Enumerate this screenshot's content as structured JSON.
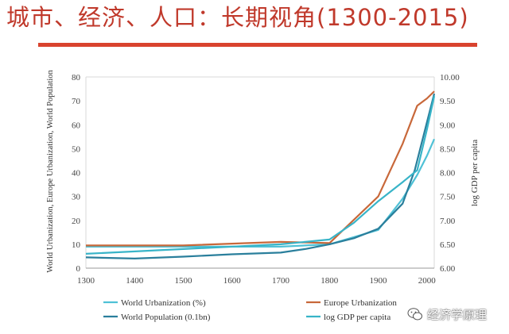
{
  "page": {
    "title": "城市、经济、人口：长期视角(1300-2015)",
    "watermark": "经济学原理",
    "watermark_icon": "wechat-icon",
    "accent_color": "#d9432e"
  },
  "chart_data": {
    "type": "line",
    "title": "",
    "xlabel": "",
    "ylabel": "World Urbanization, Europe Urbanization, World Population",
    "y2label": "log GDP per capita",
    "xlim": [
      1300,
      2015
    ],
    "ylim": [
      0,
      80
    ],
    "y2lim": [
      6.0,
      10.0
    ],
    "x_ticks": [
      "1300",
      "1400",
      "1500",
      "1600",
      "1700",
      "1800",
      "1900",
      "2000"
    ],
    "y_ticks": [
      "0",
      "10",
      "20",
      "30",
      "40",
      "50",
      "60",
      "70",
      "80"
    ],
    "y2_ticks": [
      "6.00",
      "6.50",
      "7.00",
      "7.50",
      "8.00",
      "8.50",
      "9.00",
      "9.50",
      "10.00"
    ],
    "grid": false,
    "legend_position": "bottom",
    "series": [
      {
        "name": "World Urbanization (%)",
        "axis": "left",
        "color": "#4fc1d6",
        "x": [
          1300,
          1500,
          1700,
          1800,
          1900,
          1950,
          1980,
          2000,
          2015
        ],
        "y": [
          9,
          9,
          9,
          10,
          16,
          29,
          39,
          47,
          54
        ]
      },
      {
        "name": "Europe Urbanization",
        "axis": "left",
        "color": "#c8683a",
        "x": [
          1300,
          1500,
          1700,
          1800,
          1900,
          1950,
          1980,
          2000,
          2015
        ],
        "y": [
          9.5,
          9.5,
          11,
          10.5,
          30,
          52,
          68,
          71,
          74
        ]
      },
      {
        "name": "World Population (0.1bn)",
        "axis": "left",
        "color": "#2a7f9c",
        "x": [
          1300,
          1400,
          1500,
          1600,
          1700,
          1750,
          1800,
          1850,
          1900,
          1950,
          1975,
          2000,
          2015
        ],
        "y": [
          4.5,
          4,
          4.8,
          5.8,
          6.5,
          8,
          10,
          12.5,
          16.5,
          27,
          41,
          61,
          73
        ]
      },
      {
        "name": "log GDP per capita",
        "axis": "right",
        "color": "#38b4c8",
        "x": [
          1300,
          1500,
          1700,
          1800,
          1850,
          1900,
          1950,
          1980,
          2000,
          2015
        ],
        "y": [
          6.3,
          6.4,
          6.5,
          6.6,
          6.95,
          7.4,
          7.8,
          8.05,
          8.9,
          9.6
        ]
      }
    ]
  }
}
